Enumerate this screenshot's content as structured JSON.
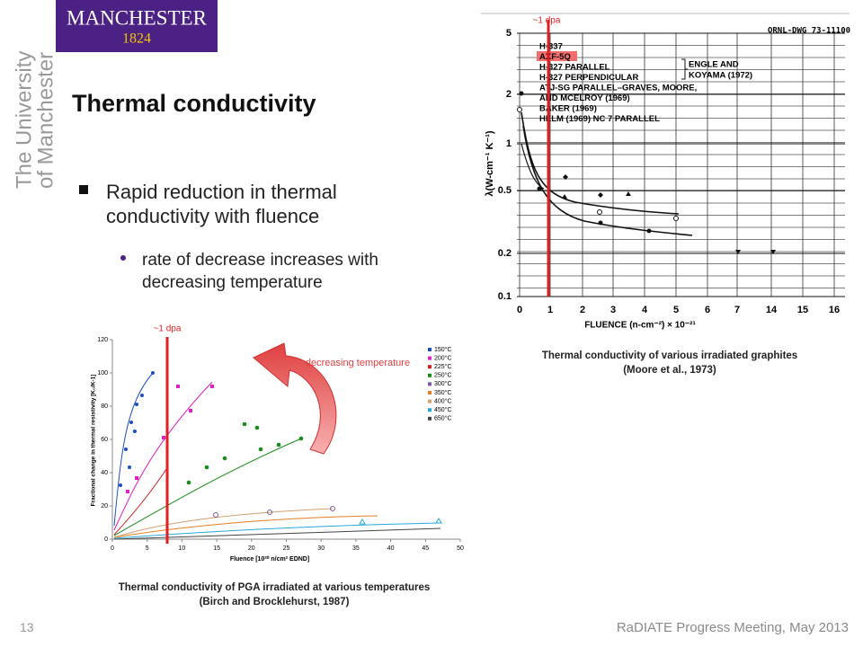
{
  "logo": {
    "name": "MANCHESTER",
    "year": "1824"
  },
  "side_text": [
    "The University",
    "of Manchester"
  ],
  "title": "Thermal conductivity",
  "bullets": [
    {
      "text": "Rapid reduction in thermal conductivity with fluence",
      "sub": [
        "rate of decrease increases with decreasing temperature"
      ]
    }
  ],
  "figure_left": {
    "annotation": "~1 dpa",
    "arrow_label": "decreasing temperature",
    "xlabel": "Fluence [10²⁰ n/cm² EDND]",
    "ylabel": "Fractional change in thermal resistivity [K₀/K-1]",
    "xticks": [
      0,
      5,
      10,
      15,
      20,
      25,
      30,
      35,
      40,
      45,
      50
    ],
    "yticks": [
      0,
      20,
      40,
      60,
      80,
      100,
      120
    ],
    "legend": [
      "150°C",
      "200°C",
      "225°C",
      "250°C",
      "300°C",
      "350°C",
      "400°C",
      "450°C",
      "650°C"
    ],
    "caption": [
      "Thermal conductivity of PGA irradiated at various temperatures",
      "(Birch and Brocklehurst,  1987)"
    ]
  },
  "figure_right": {
    "annotation": "~1 dpa",
    "drawing_no": "ORNL-DWG 73-11100",
    "ylabel": "λ(W-cm⁻¹ K⁻¹)",
    "xlabel": "FLUENCE (n-cm⁻²) × 10⁻²¹",
    "yticks": [
      "5",
      "2",
      "1",
      "0.5",
      "0.2",
      "0.1"
    ],
    "xticks": [
      "0",
      "1",
      "2",
      "3",
      "4",
      "5",
      "6",
      "7",
      "14",
      "15",
      "16"
    ],
    "legend": [
      "H-337",
      "AXF-5Q",
      "H-327 PARALLEL",
      "H-327 PERPENDICULAR",
      "ATJ-SG PARALLEL–GRAVES, MOORE,",
      "AND MCELROY (1969)",
      "BAKER (1969)",
      "HELM (1969) NC 7 PARALLEL"
    ],
    "bracket_label": [
      "ENGLE AND",
      "KOYAMA (1972)"
    ],
    "caption": [
      "Thermal conductivity of various irradiated graphites",
      "(Moore et al., 1973)"
    ]
  },
  "footer": {
    "page": "13",
    "meeting": "RaDIATE Progress Meeting, May 2013"
  }
}
